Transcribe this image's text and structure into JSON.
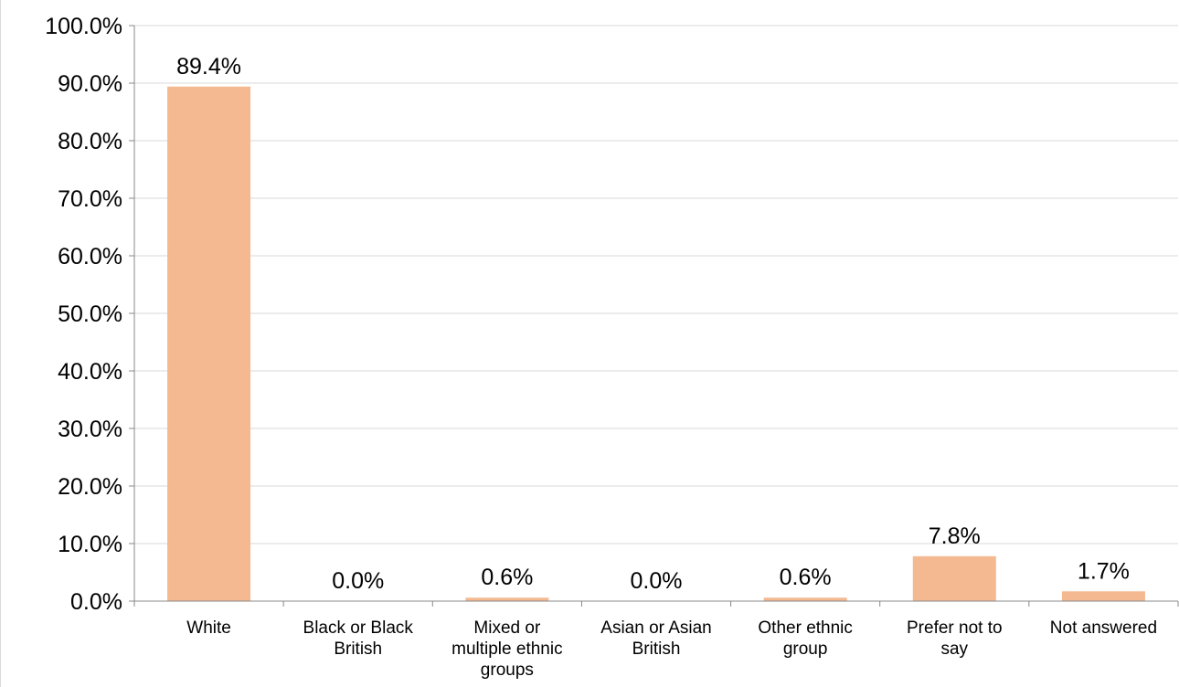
{
  "chart_data": {
    "type": "bar",
    "categories": [
      [
        "White"
      ],
      [
        "Black or Black",
        "British"
      ],
      [
        "Mixed or",
        "multiple ethnic",
        "groups"
      ],
      [
        "Asian or Asian",
        "British"
      ],
      [
        "Other ethnic",
        "group"
      ],
      [
        "Prefer not to",
        "say"
      ],
      [
        "Not answered"
      ]
    ],
    "values": [
      89.4,
      0.0,
      0.6,
      0.0,
      0.6,
      7.8,
      1.7
    ],
    "data_labels": [
      "89.4%",
      "0.0%",
      "0.6%",
      "0.0%",
      "0.6%",
      "7.8%",
      "1.7%"
    ],
    "yticks": [
      "0.0%",
      "10.0%",
      "20.0%",
      "30.0%",
      "40.0%",
      "50.0%",
      "60.0%",
      "70.0%",
      "80.0%",
      "90.0%",
      "100.0%"
    ],
    "ylim": [
      0,
      100
    ],
    "grid": true,
    "legend": "none",
    "bar_color": "#f4b990",
    "grid_color": "#d9d9d9",
    "axis_color": "#888888"
  }
}
